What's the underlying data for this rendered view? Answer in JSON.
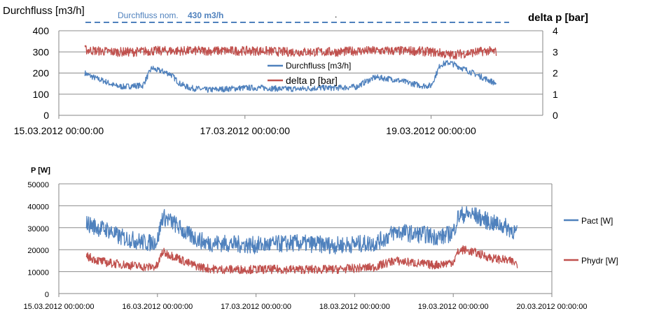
{
  "chart_data": [
    {
      "type": "line",
      "ylabel": "Durchfluss [m3/h]",
      "y2label": "delta p [bar]",
      "ylim": [
        0,
        400
      ],
      "yticks": [
        0,
        100,
        200,
        300,
        400
      ],
      "y2lim": [
        0,
        4
      ],
      "y2ticks": [
        0,
        1,
        2,
        3,
        4
      ],
      "xlim": [
        0,
        2.6
      ],
      "xticks": [
        {
          "x": 0,
          "label": "15.03.2012 00:00:00"
        },
        {
          "x": 1,
          "label": "17.03.2012 00:00:00"
        },
        {
          "x": 2,
          "label": "19.03.2012 00:00:00"
        }
      ],
      "grid": true,
      "legend": "center",
      "nominal_line": {
        "label": "Durchfluss nom.",
        "value_label": "430 m3/h",
        "value": 430,
        "color": "#4f81bd"
      },
      "marker_text": ".",
      "series": [
        {
          "name": "Durchfluss [m3/h]",
          "axis": "left",
          "color": "#4f81bd",
          "x": [
            0.14,
            0.16,
            0.2,
            0.25,
            0.3,
            0.35,
            0.4,
            0.45,
            0.5,
            0.52,
            0.55,
            0.6,
            0.65,
            0.7,
            0.75,
            0.8,
            0.9,
            1.0,
            1.1,
            1.2,
            1.3,
            1.4,
            1.5,
            1.6,
            1.65,
            1.7,
            1.75,
            1.8,
            1.85,
            1.9,
            1.95,
            2.0,
            2.05,
            2.1,
            2.15,
            2.2,
            2.25,
            2.3,
            2.35
          ],
          "values": [
            200,
            190,
            175,
            160,
            140,
            135,
            140,
            140,
            225,
            215,
            210,
            195,
            150,
            130,
            125,
            120,
            125,
            130,
            130,
            125,
            125,
            130,
            130,
            135,
            160,
            180,
            175,
            170,
            160,
            150,
            140,
            140,
            240,
            250,
            230,
            210,
            190,
            170,
            150
          ]
        },
        {
          "name": "delta p [bar]",
          "axis": "right",
          "color": "#c0504d",
          "x": [
            0.14,
            0.2,
            0.3,
            0.4,
            0.5,
            0.6,
            0.7,
            0.8,
            0.9,
            1.0,
            1.1,
            1.2,
            1.3,
            1.4,
            1.5,
            1.6,
            1.7,
            1.8,
            1.9,
            2.0,
            2.05,
            2.1,
            2.15,
            2.2,
            2.25,
            2.3,
            2.35
          ],
          "values": [
            3.1,
            3.05,
            3.0,
            3.0,
            3.05,
            3.05,
            3.05,
            3.05,
            3.05,
            3.05,
            3.05,
            3.0,
            3.0,
            3.0,
            3.0,
            3.05,
            3.05,
            3.05,
            3.05,
            3.0,
            2.95,
            2.85,
            2.9,
            2.95,
            3.0,
            3.05,
            3.0
          ]
        }
      ]
    },
    {
      "type": "line",
      "ylabel": "P [W]",
      "ylim": [
        0,
        50000
      ],
      "yticks": [
        0,
        10000,
        20000,
        30000,
        40000,
        50000
      ],
      "xlim": [
        0,
        5
      ],
      "xticks": [
        {
          "x": 0,
          "label": "15.03.2012 00:00:00"
        },
        {
          "x": 1,
          "label": "16.03.2012 00:00:00"
        },
        {
          "x": 2,
          "label": "17.03.2012 00:00:00"
        },
        {
          "x": 3,
          "label": "18.03.2012 00:00:00"
        },
        {
          "x": 4,
          "label": "19.03.2012 00:00:00"
        },
        {
          "x": 5,
          "label": "20.03.2012 00:00:00"
        }
      ],
      "grid": true,
      "legend": "right",
      "series": [
        {
          "name": "Pact [W]",
          "color": "#4f81bd",
          "x": [
            0.28,
            0.4,
            0.5,
            0.6,
            0.7,
            0.8,
            0.9,
            1.0,
            1.05,
            1.1,
            1.2,
            1.3,
            1.4,
            1.5,
            1.6,
            1.8,
            2.0,
            2.2,
            2.4,
            2.6,
            2.8,
            3.0,
            3.2,
            3.3,
            3.4,
            3.5,
            3.6,
            3.7,
            3.8,
            3.9,
            4.0,
            4.05,
            4.1,
            4.2,
            4.3,
            4.4,
            4.5,
            4.6,
            4.65
          ],
          "values": [
            32000,
            30000,
            29000,
            26000,
            25000,
            24000,
            23000,
            24000,
            35000,
            34000,
            31000,
            27000,
            25000,
            23000,
            23000,
            22500,
            22000,
            22500,
            23000,
            22500,
            22000,
            22500,
            23000,
            25000,
            28000,
            28000,
            27000,
            27000,
            26000,
            26000,
            28000,
            35000,
            36000,
            36000,
            34000,
            32000,
            31000,
            29000,
            27000
          ]
        },
        {
          "name": "Phydr [W]",
          "color": "#c0504d",
          "x": [
            0.28,
            0.4,
            0.5,
            0.6,
            0.7,
            0.8,
            0.9,
            1.0,
            1.05,
            1.1,
            1.2,
            1.3,
            1.4,
            1.5,
            1.6,
            1.8,
            2.0,
            2.2,
            2.4,
            2.6,
            2.8,
            3.0,
            3.2,
            3.3,
            3.4,
            3.5,
            3.6,
            3.7,
            3.8,
            3.9,
            4.0,
            4.05,
            4.1,
            4.2,
            4.3,
            4.4,
            4.5,
            4.6,
            4.65
          ],
          "values": [
            17000,
            15000,
            14000,
            13500,
            13000,
            12500,
            12000,
            12500,
            19000,
            18000,
            16500,
            14000,
            12500,
            11500,
            11000,
            11000,
            11000,
            11000,
            11000,
            11000,
            11000,
            11500,
            12000,
            13500,
            15000,
            14500,
            14000,
            13500,
            13000,
            13500,
            14500,
            19000,
            20000,
            19000,
            17500,
            16000,
            15500,
            14500,
            13500
          ]
        }
      ]
    }
  ]
}
